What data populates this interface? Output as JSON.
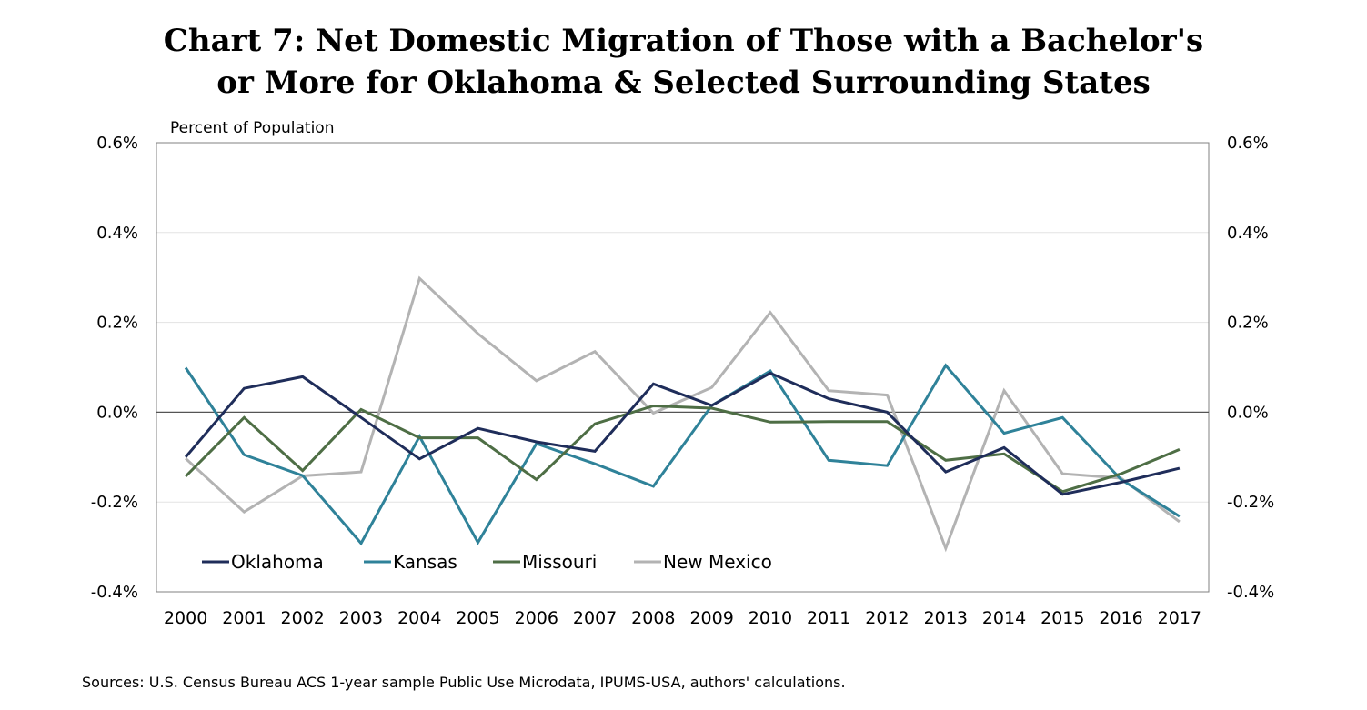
{
  "chart_data": {
    "type": "line",
    "title_lines": [
      "Chart 7: Net Domestic Migration of Those with a Bachelor's",
      "or More for Oklahoma & Selected Surrounding States"
    ],
    "ylabel": "Percent of Population",
    "xlabel": "",
    "ylim": [
      -0.4,
      0.6
    ],
    "y_ticks": [
      0.6,
      0.4,
      0.2,
      0.0,
      -0.2,
      -0.4
    ],
    "y_tick_labels": [
      "0.6%",
      "0.4%",
      "0.2%",
      "0.0%",
      "-0.2%",
      "-0.4%"
    ],
    "grid": true,
    "legend_position": "bottom-left",
    "categories": [
      "2000",
      "2001",
      "2002",
      "2003",
      "2004",
      "2005",
      "2006",
      "2007",
      "2008",
      "2009",
      "2010",
      "2011",
      "2012",
      "2013",
      "2014",
      "2015",
      "2016",
      "2017"
    ],
    "series": [
      {
        "name": "Oklahoma",
        "color": "#1f2d5a",
        "values": [
          -0.1,
          0.053,
          0.079,
          -0.012,
          -0.104,
          -0.036,
          -0.066,
          -0.087,
          0.063,
          0.015,
          0.087,
          0.03,
          0.0,
          -0.133,
          -0.079,
          -0.183,
          -0.156,
          -0.125
        ]
      },
      {
        "name": "Kansas",
        "color": "#2f8299",
        "values": [
          0.099,
          -0.095,
          -0.141,
          -0.292,
          -0.054,
          -0.29,
          -0.07,
          -0.115,
          -0.165,
          0.015,
          0.092,
          -0.107,
          -0.119,
          0.104,
          -0.047,
          -0.012,
          -0.15,
          -0.232
        ]
      },
      {
        "name": "Missouri",
        "color": "#4e6e45",
        "values": [
          -0.143,
          -0.012,
          -0.13,
          0.006,
          -0.057,
          -0.057,
          -0.15,
          -0.026,
          0.014,
          0.009,
          -0.022,
          -0.021,
          -0.021,
          -0.107,
          -0.093,
          -0.177,
          -0.137,
          -0.083
        ]
      },
      {
        "name": "New Mexico",
        "color": "#b3b3b3",
        "values": [
          -0.103,
          -0.222,
          -0.142,
          -0.133,
          0.298,
          0.175,
          0.07,
          0.135,
          -0.002,
          0.055,
          0.222,
          0.048,
          0.038,
          -0.303,
          0.048,
          -0.137,
          -0.147,
          -0.244
        ]
      }
    ],
    "source": "Sources: U.S. Census Bureau ACS 1-year sample Public Use Microdata, IPUMS-USA, authors' calculations."
  }
}
